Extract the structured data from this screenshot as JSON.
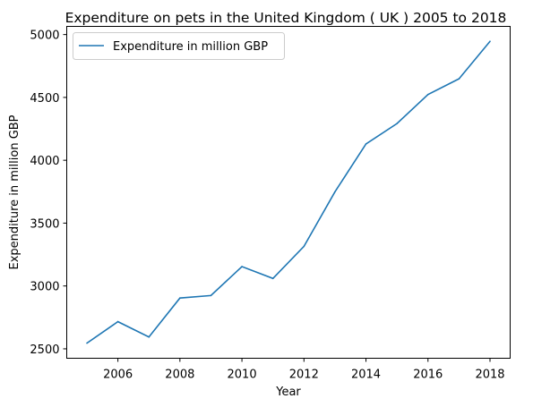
{
  "chart_data": {
    "type": "line",
    "title": "Expenditure on pets in the United Kingdom ( UK ) 2005 to 2018",
    "xlabel": "Year",
    "ylabel": "Expenditure in million GBP",
    "x": [
      2005,
      2006,
      2007,
      2008,
      2009,
      2010,
      2011,
      2012,
      2013,
      2014,
      2015,
      2016,
      2017,
      2018
    ],
    "series": [
      {
        "name": "Expenditure in million GBP",
        "color": "#1f77b4",
        "values": [
          2545,
          2716,
          2594,
          2904,
          2924,
          3154,
          3060,
          3315,
          3749,
          4130,
          4292,
          4523,
          4648,
          4946
        ]
      }
    ],
    "xticks": [
      2006,
      2008,
      2010,
      2012,
      2014,
      2016,
      2018
    ],
    "yticks": [
      2500,
      3000,
      3500,
      4000,
      4500,
      5000
    ],
    "xlim": [
      2004.35,
      2018.65
    ],
    "ylim": [
      2425,
      5065
    ],
    "grid": false,
    "legend": "upper-left"
  }
}
